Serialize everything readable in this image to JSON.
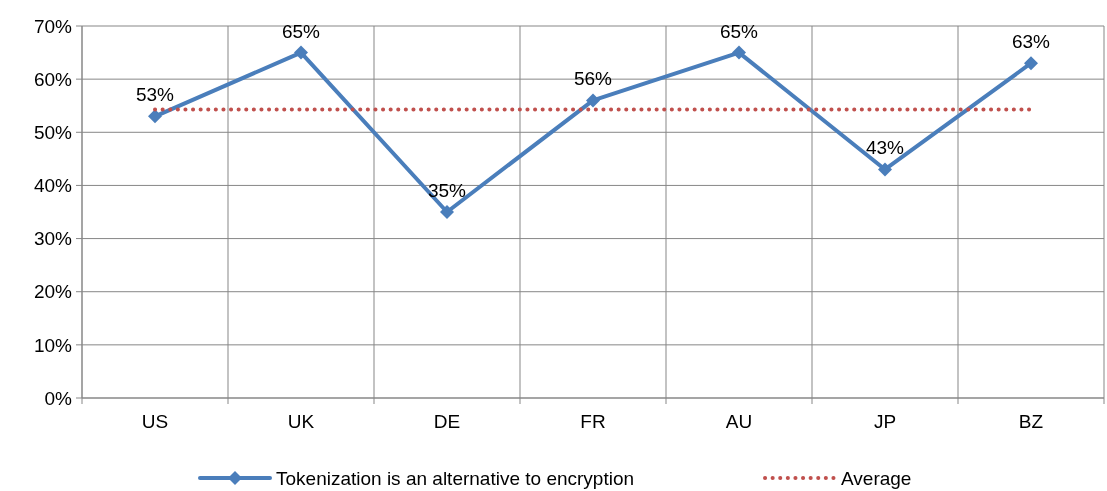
{
  "chart_data": {
    "type": "line",
    "categories": [
      "US",
      "UK",
      "DE",
      "FR",
      "AU",
      "JP",
      "BZ"
    ],
    "series": [
      {
        "name": "Tokenization is an alternative to encryption",
        "color": "#4a7ebb",
        "values": [
          53,
          65,
          35,
          56,
          65,
          43,
          63
        ],
        "marker": "diamond",
        "line_style": "solid",
        "value_labels": [
          "53%",
          "65%",
          "35%",
          "56%",
          "65%",
          "43%",
          "63%"
        ]
      },
      {
        "name": "Average",
        "color": "#c0504d",
        "values": [
          54.3,
          54.3,
          54.3,
          54.3,
          54.3,
          54.3,
          54.3
        ],
        "marker": "none",
        "line_style": "dotted"
      }
    ],
    "ylim": [
      0,
      70
    ],
    "yticks": [
      {
        "value": 0,
        "label": "0%"
      },
      {
        "value": 10,
        "label": "10%"
      },
      {
        "value": 20,
        "label": "20%"
      },
      {
        "value": 30,
        "label": "30%"
      },
      {
        "value": 40,
        "label": "40%"
      },
      {
        "value": 50,
        "label": "50%"
      },
      {
        "value": 60,
        "label": "60%"
      },
      {
        "value": 70,
        "label": "70%"
      }
    ],
    "grid": true,
    "legend": "bottom"
  }
}
